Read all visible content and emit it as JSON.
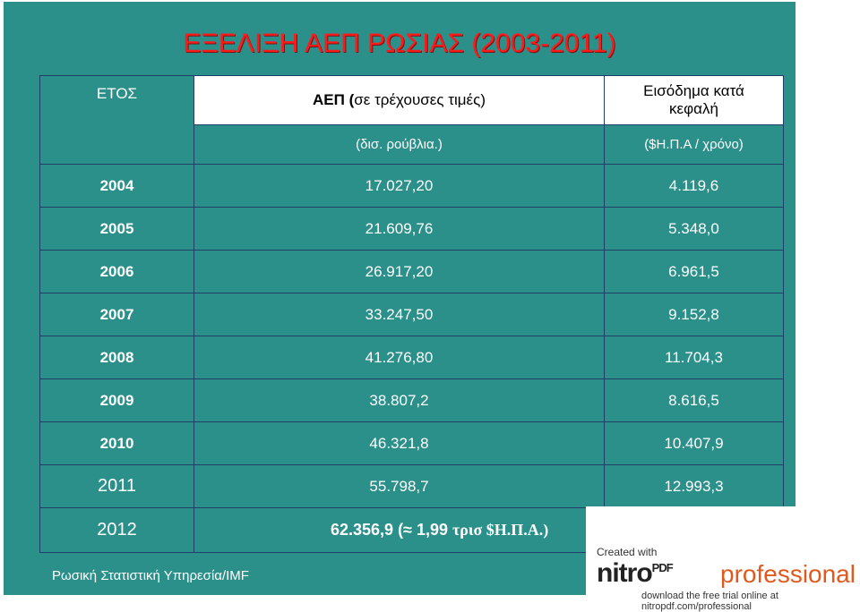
{
  "title": "ΕΞΕΛΙΞΗ ΑΕΠ ΡΩΣΙΑΣ (2003-2011)",
  "table": {
    "year_header": "ΕΤΟΣ",
    "gdp_header_bold": "ΑΕΠ (",
    "gdp_header_rest": "σε τρέχουσες τιμές)",
    "gdp_unit": "(δισ. ρούβλια.)",
    "income_header_line1": "Εισόδημα κατά",
    "income_header_line2": "κεφαλή",
    "income_unit": "($Η.Π.Α / χρόνο)",
    "rows": [
      {
        "year": "2004",
        "gdp": "17.027,20",
        "income": "4.119,6"
      },
      {
        "year": "2005",
        "gdp": "21.609,76",
        "income": "5.348,0"
      },
      {
        "year": "2006",
        "gdp": "26.917,20",
        "income": "6.961,5"
      },
      {
        "year": "2007",
        "gdp": "33.247,50",
        "income": "9.152,8"
      },
      {
        "year": "2008",
        "gdp": "41.276,80",
        "income": "11.704,3"
      },
      {
        "year": "2009",
        "gdp": "38.807,2",
        "income": "8.616,5"
      },
      {
        "year": "2010",
        "gdp": "46.321,8",
        "income": "10.407,9"
      },
      {
        "year": "2011",
        "gdp": "55.798,7",
        "income": "12.993,3"
      }
    ],
    "last_row": {
      "year": "2012",
      "value_part1": "62.356,9 (≈ 1,99 ",
      "value_part2": "τρισ $Η.Π.Α.)"
    }
  },
  "footer": "Ρωσική Στατιστική Υπηρεσία/IMF",
  "ad": {
    "created": "Created with",
    "brand": "nitro",
    "brand_sup": "PDF",
    "pro": "professional",
    "download": "download the free trial online at nitropdf.com/professional"
  }
}
